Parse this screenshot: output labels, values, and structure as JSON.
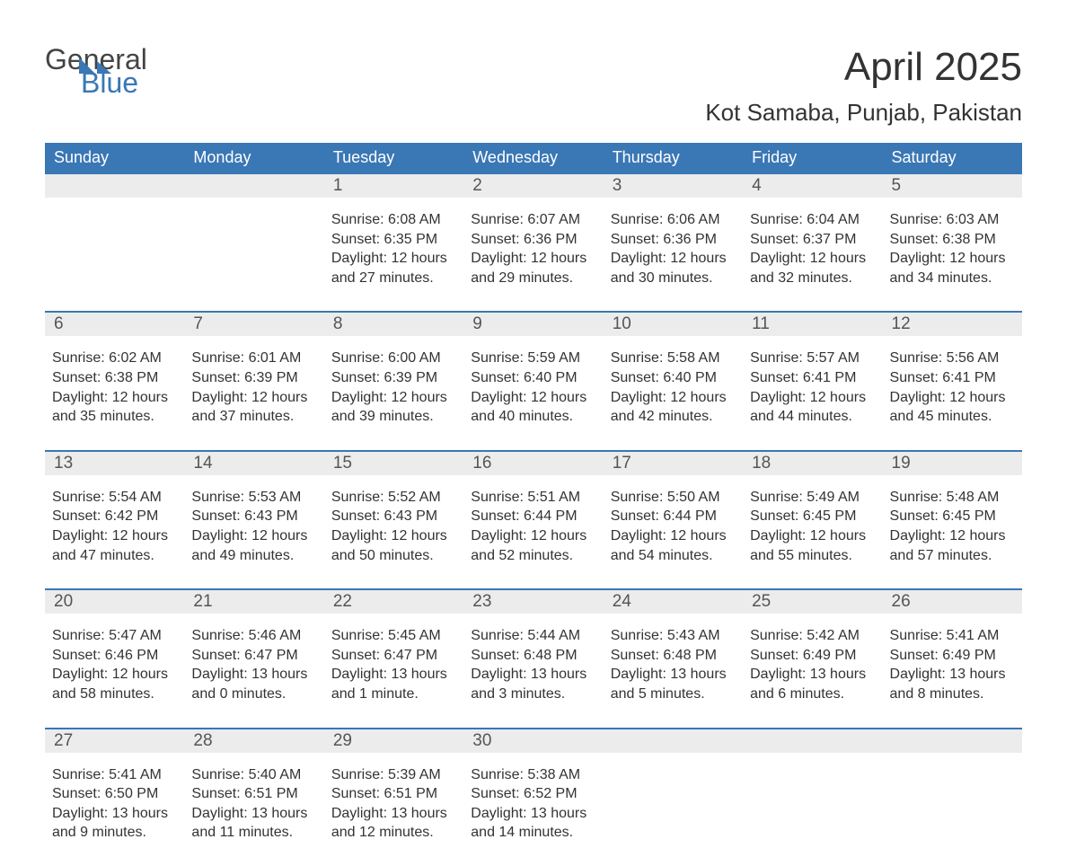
{
  "logo": {
    "general": "General",
    "blue": "Blue"
  },
  "title": "April 2025",
  "subtitle": "Kot Samaba, Punjab, Pakistan",
  "colors": {
    "header_bg": "#3a77b5",
    "header_text": "#ffffff",
    "band_bg": "#ececec",
    "band_border": "#3a77b5",
    "text": "#333333",
    "daynum": "#555555",
    "page_bg": "#ffffff"
  },
  "fonts": {
    "title_size": 44,
    "subtitle_size": 26,
    "header_size": 18,
    "daynum_size": 19,
    "body_size": 16,
    "family": "Arial"
  },
  "day_headers": [
    "Sunday",
    "Monday",
    "Tuesday",
    "Wednesday",
    "Thursday",
    "Friday",
    "Saturday"
  ],
  "weeks": [
    [
      {
        "n": "",
        "sr": "",
        "ss": "",
        "dl": ""
      },
      {
        "n": "",
        "sr": "",
        "ss": "",
        "dl": ""
      },
      {
        "n": "1",
        "sr": "Sunrise: 6:08 AM",
        "ss": "Sunset: 6:35 PM",
        "dl": "Daylight: 12 hours and 27 minutes."
      },
      {
        "n": "2",
        "sr": "Sunrise: 6:07 AM",
        "ss": "Sunset: 6:36 PM",
        "dl": "Daylight: 12 hours and 29 minutes."
      },
      {
        "n": "3",
        "sr": "Sunrise: 6:06 AM",
        "ss": "Sunset: 6:36 PM",
        "dl": "Daylight: 12 hours and 30 minutes."
      },
      {
        "n": "4",
        "sr": "Sunrise: 6:04 AM",
        "ss": "Sunset: 6:37 PM",
        "dl": "Daylight: 12 hours and 32 minutes."
      },
      {
        "n": "5",
        "sr": "Sunrise: 6:03 AM",
        "ss": "Sunset: 6:38 PM",
        "dl": "Daylight: 12 hours and 34 minutes."
      }
    ],
    [
      {
        "n": "6",
        "sr": "Sunrise: 6:02 AM",
        "ss": "Sunset: 6:38 PM",
        "dl": "Daylight: 12 hours and 35 minutes."
      },
      {
        "n": "7",
        "sr": "Sunrise: 6:01 AM",
        "ss": "Sunset: 6:39 PM",
        "dl": "Daylight: 12 hours and 37 minutes."
      },
      {
        "n": "8",
        "sr": "Sunrise: 6:00 AM",
        "ss": "Sunset: 6:39 PM",
        "dl": "Daylight: 12 hours and 39 minutes."
      },
      {
        "n": "9",
        "sr": "Sunrise: 5:59 AM",
        "ss": "Sunset: 6:40 PM",
        "dl": "Daylight: 12 hours and 40 minutes."
      },
      {
        "n": "10",
        "sr": "Sunrise: 5:58 AM",
        "ss": "Sunset: 6:40 PM",
        "dl": "Daylight: 12 hours and 42 minutes."
      },
      {
        "n": "11",
        "sr": "Sunrise: 5:57 AM",
        "ss": "Sunset: 6:41 PM",
        "dl": "Daylight: 12 hours and 44 minutes."
      },
      {
        "n": "12",
        "sr": "Sunrise: 5:56 AM",
        "ss": "Sunset: 6:41 PM",
        "dl": "Daylight: 12 hours and 45 minutes."
      }
    ],
    [
      {
        "n": "13",
        "sr": "Sunrise: 5:54 AM",
        "ss": "Sunset: 6:42 PM",
        "dl": "Daylight: 12 hours and 47 minutes."
      },
      {
        "n": "14",
        "sr": "Sunrise: 5:53 AM",
        "ss": "Sunset: 6:43 PM",
        "dl": "Daylight: 12 hours and 49 minutes."
      },
      {
        "n": "15",
        "sr": "Sunrise: 5:52 AM",
        "ss": "Sunset: 6:43 PM",
        "dl": "Daylight: 12 hours and 50 minutes."
      },
      {
        "n": "16",
        "sr": "Sunrise: 5:51 AM",
        "ss": "Sunset: 6:44 PM",
        "dl": "Daylight: 12 hours and 52 minutes."
      },
      {
        "n": "17",
        "sr": "Sunrise: 5:50 AM",
        "ss": "Sunset: 6:44 PM",
        "dl": "Daylight: 12 hours and 54 minutes."
      },
      {
        "n": "18",
        "sr": "Sunrise: 5:49 AM",
        "ss": "Sunset: 6:45 PM",
        "dl": "Daylight: 12 hours and 55 minutes."
      },
      {
        "n": "19",
        "sr": "Sunrise: 5:48 AM",
        "ss": "Sunset: 6:45 PM",
        "dl": "Daylight: 12 hours and 57 minutes."
      }
    ],
    [
      {
        "n": "20",
        "sr": "Sunrise: 5:47 AM",
        "ss": "Sunset: 6:46 PM",
        "dl": "Daylight: 12 hours and 58 minutes."
      },
      {
        "n": "21",
        "sr": "Sunrise: 5:46 AM",
        "ss": "Sunset: 6:47 PM",
        "dl": "Daylight: 13 hours and 0 minutes."
      },
      {
        "n": "22",
        "sr": "Sunrise: 5:45 AM",
        "ss": "Sunset: 6:47 PM",
        "dl": "Daylight: 13 hours and 1 minute."
      },
      {
        "n": "23",
        "sr": "Sunrise: 5:44 AM",
        "ss": "Sunset: 6:48 PM",
        "dl": "Daylight: 13 hours and 3 minutes."
      },
      {
        "n": "24",
        "sr": "Sunrise: 5:43 AM",
        "ss": "Sunset: 6:48 PM",
        "dl": "Daylight: 13 hours and 5 minutes."
      },
      {
        "n": "25",
        "sr": "Sunrise: 5:42 AM",
        "ss": "Sunset: 6:49 PM",
        "dl": "Daylight: 13 hours and 6 minutes."
      },
      {
        "n": "26",
        "sr": "Sunrise: 5:41 AM",
        "ss": "Sunset: 6:49 PM",
        "dl": "Daylight: 13 hours and 8 minutes."
      }
    ],
    [
      {
        "n": "27",
        "sr": "Sunrise: 5:41 AM",
        "ss": "Sunset: 6:50 PM",
        "dl": "Daylight: 13 hours and 9 minutes."
      },
      {
        "n": "28",
        "sr": "Sunrise: 5:40 AM",
        "ss": "Sunset: 6:51 PM",
        "dl": "Daylight: 13 hours and 11 minutes."
      },
      {
        "n": "29",
        "sr": "Sunrise: 5:39 AM",
        "ss": "Sunset: 6:51 PM",
        "dl": "Daylight: 13 hours and 12 minutes."
      },
      {
        "n": "30",
        "sr": "Sunrise: 5:38 AM",
        "ss": "Sunset: 6:52 PM",
        "dl": "Daylight: 13 hours and 14 minutes."
      },
      {
        "n": "",
        "sr": "",
        "ss": "",
        "dl": ""
      },
      {
        "n": "",
        "sr": "",
        "ss": "",
        "dl": ""
      },
      {
        "n": "",
        "sr": "",
        "ss": "",
        "dl": ""
      }
    ]
  ]
}
